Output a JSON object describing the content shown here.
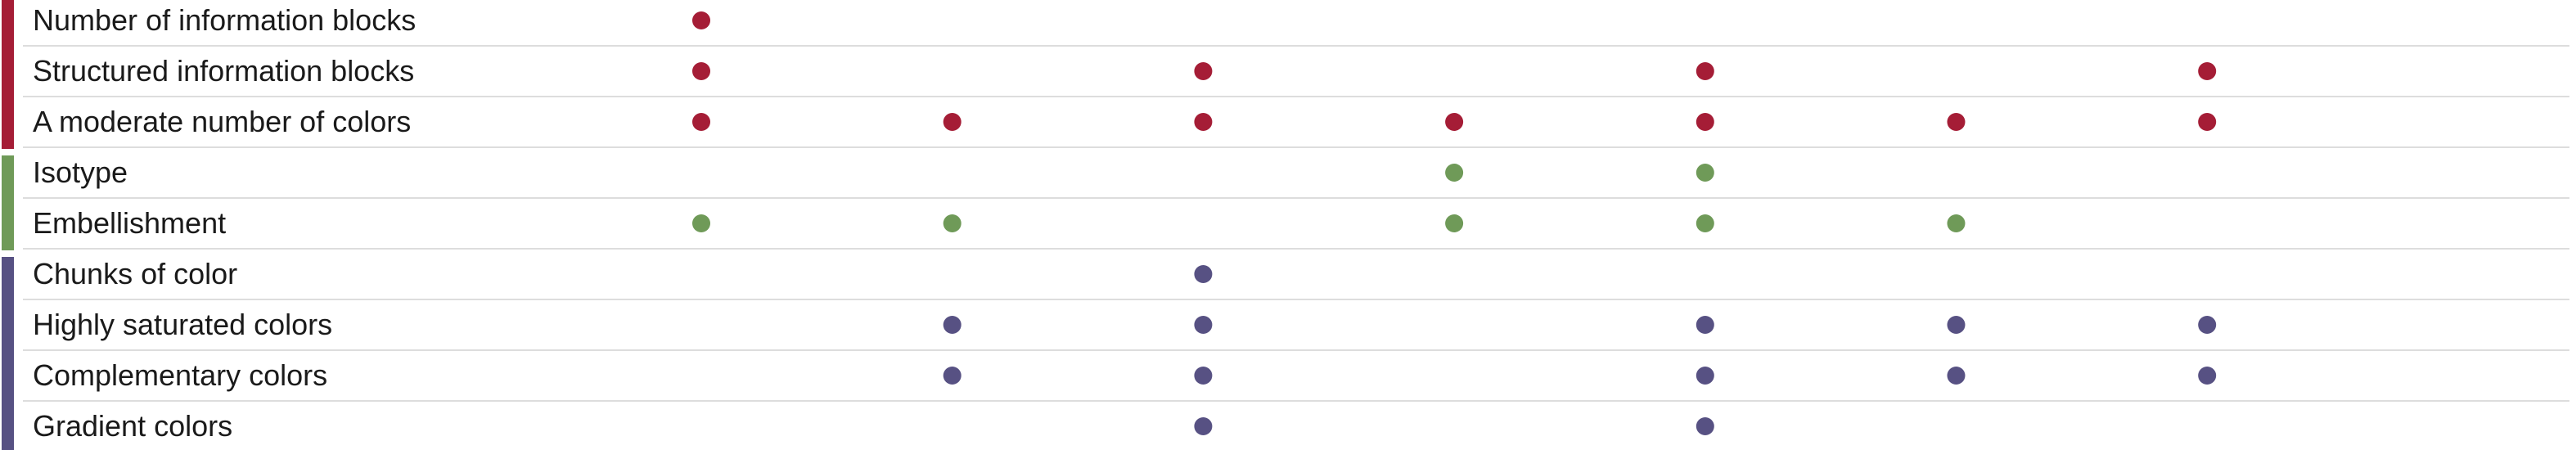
{
  "chart_data": {
    "type": "scatter",
    "columns": 8,
    "groups": [
      {
        "color": "#a51d36",
        "rows": [
          "Number of information blocks",
          "Structured information blocks",
          "A moderate number of colors"
        ]
      },
      {
        "color": "#6f9a58",
        "rows": [
          "Isotype",
          "Embellishment"
        ]
      },
      {
        "color": "#575183",
        "rows": [
          "Chunks of color",
          "Highly saturated colors",
          "Complementary colors",
          "Gradient colors"
        ]
      }
    ],
    "rows": [
      {
        "label": "Number of information blocks",
        "group": 0,
        "marks": [
          1
        ]
      },
      {
        "label": "Structured information blocks",
        "group": 0,
        "marks": [
          1,
          3,
          5,
          7
        ]
      },
      {
        "label": "A moderate number of colors",
        "group": 0,
        "marks": [
          1,
          2,
          3,
          4,
          5,
          6,
          7
        ]
      },
      {
        "label": "Isotype",
        "group": 1,
        "marks": [
          4,
          5
        ]
      },
      {
        "label": "Embellishment",
        "group": 1,
        "marks": [
          1,
          2,
          4,
          5,
          6
        ]
      },
      {
        "label": "Chunks of color",
        "group": 2,
        "marks": [
          3
        ]
      },
      {
        "label": "Highly saturated colors",
        "group": 2,
        "marks": [
          2,
          3,
          5,
          6,
          7
        ]
      },
      {
        "label": "Complementary colors",
        "group": 2,
        "marks": [
          2,
          3,
          5,
          6,
          7
        ]
      },
      {
        "label": "Gradient colors",
        "group": 2,
        "marks": [
          3,
          5
        ]
      }
    ],
    "xlabel": "",
    "ylabel": "",
    "grid": "horizontal separators"
  },
  "colors": {
    "separator": "#dddddd",
    "text": "#1a1a1a"
  }
}
